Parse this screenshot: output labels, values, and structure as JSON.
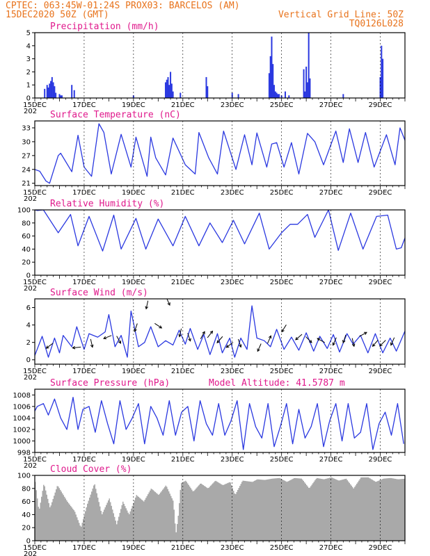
{
  "header": {
    "line1": "CPTEC:  063:45W-01:24S  PROX03: BARCELOS (AM)",
    "line2_left": "15DEC2020 50Z (GMT)",
    "line2_right": "Vertical Grid Line: 50Z",
    "line3_right": "TQ0126L028"
  },
  "colors": {
    "header": "#e8731c",
    "title": "#e0198c",
    "line": "#2a38e0",
    "bar": "#2a38e0",
    "cloud": "#a9a9a9",
    "arrow": "#000000"
  },
  "x_axis": {
    "first_label": "15DEC",
    "first_sublabel": "202",
    "date_labels": [
      "15DEC",
      "17DEC",
      "19DEC",
      "21DEC",
      "23DEC",
      "25DEC",
      "27DEC",
      "29DEC"
    ],
    "day_start": 0,
    "day_end": 15
  },
  "chart_data": [
    {
      "type": "bar",
      "title": "Precipitation (mm/h)",
      "ylim": [
        0,
        5
      ],
      "yticks": [
        "0",
        "1",
        "2",
        "3",
        "4",
        "5"
      ],
      "x_unit": "days since 15DEC",
      "x": [
        0.4,
        0.5,
        0.55,
        0.6,
        0.65,
        0.7,
        0.75,
        0.8,
        0.85,
        1.0,
        1.05,
        1.1,
        1.5,
        1.6,
        4.0,
        5.3,
        5.35,
        5.4,
        5.45,
        5.5,
        5.55,
        5.6,
        5.9,
        6.95,
        7.0,
        8.0,
        8.25,
        9.5,
        9.55,
        9.6,
        9.65,
        9.7,
        9.75,
        9.8,
        9.85,
        9.9,
        10.0,
        10.15,
        10.3,
        10.9,
        10.95,
        11.0,
        11.05,
        11.1,
        11.15,
        12.5,
        14.0,
        14.05,
        14.1
      ],
      "values": [
        0.7,
        1.0,
        0.8,
        1.1,
        1.3,
        1.6,
        1.2,
        0.9,
        0.4,
        0.3,
        0.2,
        0.2,
        1.0,
        0.6,
        0.2,
        1.2,
        1.4,
        1.6,
        1.0,
        2.0,
        1.1,
        0.5,
        0.4,
        1.6,
        0.9,
        0.4,
        0.3,
        1.9,
        3.2,
        4.7,
        2.6,
        1.0,
        0.5,
        0.4,
        0.3,
        0.3,
        0.2,
        0.5,
        0.2,
        2.2,
        0.5,
        2.4,
        1.2,
        5.0,
        1.5,
        0.3,
        1.6,
        4.0,
        3.0
      ]
    },
    {
      "type": "line",
      "title": "Surface Temperature (nC)",
      "ylim": [
        20.5,
        34.5
      ],
      "yticks": [
        "21",
        "24",
        "27",
        "30",
        "33"
      ],
      "x_unit": "days since 15DEC",
      "x": [
        0,
        0.2,
        0.45,
        0.6,
        0.95,
        1.05,
        1.5,
        1.75,
        2.0,
        2.3,
        2.6,
        2.8,
        3.1,
        3.5,
        3.9,
        4.1,
        4.55,
        4.7,
        4.9,
        5.3,
        5.6,
        6.1,
        6.5,
        6.65,
        7.05,
        7.4,
        7.65,
        8.15,
        8.5,
        8.8,
        9.0,
        9.4,
        9.6,
        9.8,
        10.1,
        10.4,
        10.7,
        11.05,
        11.35,
        11.7,
        12.2,
        12.5,
        12.75,
        13.1,
        13.4,
        13.75,
        14.25,
        14.6,
        14.8,
        15.0
      ],
      "values": [
        24,
        23.6,
        21.5,
        21,
        27,
        27.5,
        23.5,
        31.4,
        24.5,
        22.5,
        33.9,
        32,
        23,
        31.6,
        24.5,
        31,
        22.5,
        31,
        26.5,
        22.8,
        30.8,
        25,
        23,
        32,
        26.5,
        23,
        32.3,
        24,
        31.5,
        25,
        31.9,
        24.5,
        29.5,
        29.8,
        24.5,
        29.8,
        23,
        31.8,
        30,
        25,
        32.3,
        25.5,
        32.8,
        25.5,
        32,
        24.5,
        31.5,
        25,
        33,
        30.3
      ]
    },
    {
      "type": "line",
      "title": "Relative Humidity (%)",
      "ylim": [
        0,
        100
      ],
      "yticks": [
        "0",
        "20",
        "40",
        "60",
        "80",
        "100"
      ],
      "x_unit": "days since 15DEC",
      "x": [
        0,
        0.1,
        0.35,
        0.95,
        1.45,
        1.75,
        2.2,
        2.75,
        3.2,
        3.5,
        4.1,
        4.5,
        5.0,
        5.6,
        6.1,
        6.65,
        7.1,
        7.6,
        8.05,
        8.5,
        9.1,
        9.5,
        10.0,
        10.35,
        10.65,
        11.05,
        11.35,
        11.9,
        12.3,
        12.8,
        13.3,
        13.85,
        14.3,
        14.65,
        14.85,
        15.0
      ],
      "values": [
        100,
        99,
        100,
        65,
        93,
        45,
        90,
        37,
        92,
        40,
        87,
        40,
        86,
        45,
        90,
        45,
        80,
        50,
        84,
        48,
        95,
        40,
        65,
        78,
        78,
        93,
        58,
        100,
        38,
        95,
        40,
        90,
        92,
        40,
        42,
        57
      ]
    },
    {
      "type": "line",
      "title": "Surface Wind (m/s)",
      "ylim": [
        -0.5,
        7
      ],
      "yticks": [
        "0",
        "2",
        "4",
        "6"
      ],
      "x_unit": "days since 15DEC",
      "x": [
        0,
        0.3,
        0.55,
        0.8,
        1.0,
        1.15,
        1.5,
        1.7,
        2.0,
        2.2,
        2.55,
        2.85,
        3.0,
        3.25,
        3.5,
        3.75,
        3.9,
        4.2,
        4.45,
        4.7,
        5.0,
        5.3,
        5.6,
        5.85,
        6.1,
        6.3,
        6.6,
        6.85,
        7.1,
        7.4,
        7.6,
        7.9,
        8.1,
        8.35,
        8.6,
        8.8,
        9.0,
        9.3,
        9.55,
        9.8,
        10.1,
        10.4,
        10.7,
        11.0,
        11.3,
        11.55,
        11.85,
        12.1,
        12.35,
        12.65,
        12.9,
        13.2,
        13.5,
        13.8,
        14.1,
        14.4,
        14.65,
        15.0
      ],
      "values": [
        0.5,
        2.7,
        0.3,
        2.5,
        0.8,
        2.8,
        1.5,
        3.8,
        1.2,
        3.0,
        2.6,
        3.2,
        5.2,
        1.5,
        2.8,
        0.3,
        5.6,
        1.5,
        2.0,
        3.8,
        1.5,
        2.2,
        1.7,
        3.4,
        1.8,
        3.6,
        1.2,
        2.9,
        0.6,
        3.0,
        0.8,
        2.5,
        0.3,
        2.5,
        1.2,
        6.2,
        2.5,
        2.2,
        1.5,
        3.5,
        1.2,
        2.6,
        1.1,
        3.1,
        1.0,
        2.7,
        1.3,
        2.9,
        0.9,
        3.0,
        1.8,
        2.8,
        0.8,
        3.0,
        0.8,
        2.5,
        1.0,
        3.3
      ],
      "arrows": {
        "x": [
          0.6,
          1.7,
          2.3,
          2.95,
          3.4,
          4.1,
          4.55,
          5.0,
          5.4,
          5.9,
          6.25,
          6.8,
          7.1,
          7.5,
          7.9,
          8.3,
          9.1,
          9.5,
          10.1,
          10.7,
          11.1,
          11.6,
          12.15,
          12.55,
          12.9,
          13.3,
          13.8,
          14.1,
          14.5
        ],
        "u": [
          -0.8,
          -1,
          0.2,
          -1,
          0.5,
          -0.3,
          -0.2,
          0.9,
          0.4,
          -0.2,
          0.3,
          0.5,
          0.7,
          -0.6,
          -0.8,
          0.3,
          -0.4,
          0.4,
          -0.5,
          -0.7,
          0.7,
          -0.9,
          -0.4,
          -0.3,
          0.2,
          0.9,
          -0.6,
          -0.7,
          -0.4
        ],
        "v": [
          -0.6,
          -0.1,
          -0.9,
          -0.4,
          -0.9,
          -0.9,
          -0.9,
          -0.6,
          -0.9,
          -0.9,
          -0.9,
          0.9,
          0.9,
          -0.7,
          -0.6,
          -0.9,
          -0.9,
          0.9,
          -0.8,
          -0.6,
          -0.7,
          0.5,
          -0.9,
          -0.9,
          -0.9,
          0.5,
          -0.7,
          -0.7,
          -0.9
        ]
      }
    },
    {
      "type": "line",
      "title": "Surface Pressure (hPa)",
      "subtitle": "Model Altitude: 41.5787 m",
      "ylim": [
        998,
        1009
      ],
      "yticks": [
        "998",
        "1000",
        "1002",
        "1004",
        "1006",
        "1008"
      ],
      "x_unit": "days since 15DEC",
      "x": [
        0,
        0.1,
        0.35,
        0.55,
        0.8,
        1.05,
        1.3,
        1.55,
        1.75,
        1.95,
        2.2,
        2.45,
        2.7,
        2.95,
        3.2,
        3.45,
        3.7,
        3.95,
        4.2,
        4.45,
        4.7,
        4.95,
        5.2,
        5.45,
        5.7,
        5.95,
        6.2,
        6.45,
        6.7,
        6.95,
        7.2,
        7.45,
        7.7,
        7.95,
        8.2,
        8.45,
        8.7,
        8.95,
        9.2,
        9.45,
        9.7,
        9.95,
        10.2,
        10.45,
        10.7,
        10.95,
        11.2,
        11.45,
        11.7,
        11.95,
        12.2,
        12.45,
        12.7,
        12.95,
        13.2,
        13.45,
        13.7,
        13.95,
        14.2,
        14.45,
        14.7,
        14.95
      ],
      "values": [
        1005.2,
        1006,
        1006.5,
        1004.5,
        1007.3,
        1004,
        1002,
        1007.6,
        1002,
        1005.5,
        1006,
        1001.5,
        1007,
        1003,
        999.5,
        1007,
        1002,
        1004,
        1006.5,
        999.5,
        1006,
        1004,
        1001,
        1007,
        1001,
        1005,
        1006,
        1000,
        1007,
        1003,
        1001,
        1006.5,
        1001,
        1003.5,
        1007,
        998.5,
        1006.5,
        1002.5,
        1000.5,
        1006.5,
        999,
        1002.5,
        1006.5,
        999.5,
        1005.5,
        1000.5,
        1002.5,
        1006.5,
        999,
        1003.5,
        1006.5,
        1000,
        1006.5,
        1000.5,
        1001.5,
        1006.5,
        998.5,
        1003,
        1005,
        1001,
        1006.5,
        999.5
      ]
    },
    {
      "type": "area",
      "title": "Cloud Cover (%)",
      "ylim": [
        0,
        100
      ],
      "yticks": [
        "0",
        "20",
        "40",
        "60",
        "80",
        "100"
      ],
      "x_unit": "days since 15DEC",
      "x": [
        0,
        0.15,
        0.35,
        0.6,
        0.9,
        1.3,
        1.6,
        1.85,
        2.1,
        2.4,
        2.7,
        3.0,
        3.3,
        3.55,
        3.8,
        4.1,
        4.4,
        4.7,
        5.0,
        5.3,
        5.6,
        5.7,
        5.8,
        5.9,
        6.1,
        6.4,
        6.7,
        7.0,
        7.3,
        7.6,
        7.9,
        8.1,
        8.4,
        8.8,
        9.0,
        9.3,
        9.6,
        9.9,
        10.2,
        10.5,
        10.8,
        11.1,
        11.4,
        11.7,
        12.0,
        12.3,
        12.6,
        12.9,
        13.2,
        13.5,
        13.8,
        14.1,
        14.4,
        14.7,
        15.0
      ],
      "values": [
        90,
        45,
        88,
        50,
        85,
        60,
        45,
        20,
        55,
        88,
        40,
        65,
        25,
        60,
        40,
        70,
        60,
        80,
        70,
        85,
        60,
        10,
        40,
        88,
        92,
        75,
        88,
        80,
        92,
        85,
        90,
        70,
        92,
        90,
        94,
        93,
        95,
        96,
        90,
        96,
        95,
        80,
        96,
        94,
        97,
        92,
        95,
        80,
        97,
        97,
        90,
        95,
        96,
        94,
        95
      ]
    }
  ]
}
